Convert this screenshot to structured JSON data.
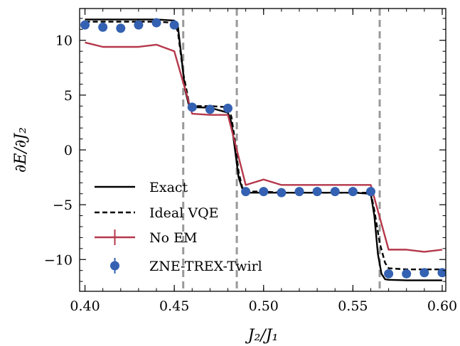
{
  "chart_data": {
    "type": "line",
    "xlabel": "J₂/J₁",
    "ylabel": "∂E/∂J₂",
    "xlim": [
      0.397,
      0.602
    ],
    "ylim": [
      -12.9,
      12.9
    ],
    "xticks": [
      0.4,
      0.45,
      0.5,
      0.55,
      0.6
    ],
    "xtick_labels": [
      "0.40",
      "0.45",
      "0.50",
      "0.55",
      "0.60"
    ],
    "yticks": [
      10,
      5,
      0,
      -5,
      -10
    ],
    "ytick_labels": [
      "10",
      "5",
      "0",
      "−5",
      "−10"
    ],
    "vlines": [
      0.455,
      0.485,
      0.565
    ],
    "legend_position": "lower left",
    "series": [
      {
        "name": "Exact",
        "style": "solid",
        "color": "#000000",
        "x": [
          0.4,
          0.41,
          0.42,
          0.43,
          0.44,
          0.45,
          0.452,
          0.454,
          0.456,
          0.458,
          0.46,
          0.47,
          0.48,
          0.482,
          0.484,
          0.486,
          0.488,
          0.49,
          0.5,
          0.51,
          0.52,
          0.53,
          0.54,
          0.55,
          0.56,
          0.562,
          0.564,
          0.566,
          0.568,
          0.57,
          0.58,
          0.59,
          0.6
        ],
        "y": [
          11.9,
          11.9,
          11.9,
          11.9,
          11.9,
          11.8,
          11.3,
          8.5,
          5.5,
          4.2,
          3.9,
          3.85,
          3.4,
          2.5,
          0.0,
          -2.5,
          -3.5,
          -3.9,
          -3.9,
          -3.9,
          -3.9,
          -3.9,
          -3.9,
          -3.9,
          -4.0,
          -6.0,
          -9.5,
          -11.3,
          -11.8,
          -11.85,
          -11.9,
          -11.9,
          -11.9
        ]
      },
      {
        "name": "Ideal VQE",
        "style": "dashed",
        "color": "#000000",
        "x": [
          0.4,
          0.41,
          0.42,
          0.43,
          0.44,
          0.45,
          0.452,
          0.455,
          0.458,
          0.46,
          0.47,
          0.48,
          0.482,
          0.484,
          0.486,
          0.488,
          0.49,
          0.5,
          0.51,
          0.52,
          0.53,
          0.54,
          0.55,
          0.56,
          0.562,
          0.565,
          0.568,
          0.57,
          0.58,
          0.59,
          0.6
        ],
        "y": [
          11.7,
          11.7,
          11.7,
          11.7,
          11.7,
          11.6,
          10.8,
          7.0,
          4.5,
          4.0,
          4.0,
          3.9,
          3.0,
          0.8,
          -2.0,
          -3.4,
          -3.8,
          -3.8,
          -3.9,
          -3.9,
          -3.9,
          -3.9,
          -3.9,
          -3.9,
          -5.5,
          -8.5,
          -10.3,
          -10.8,
          -10.9,
          -10.9,
          -10.9
        ]
      },
      {
        "name": "No EM",
        "style": "solid",
        "color": "#b5384b",
        "x": [
          0.4,
          0.41,
          0.42,
          0.43,
          0.44,
          0.45,
          0.46,
          0.47,
          0.48,
          0.49,
          0.5,
          0.51,
          0.52,
          0.53,
          0.54,
          0.55,
          0.56,
          0.57,
          0.58,
          0.59,
          0.6
        ],
        "y": [
          9.8,
          9.4,
          9.4,
          9.4,
          9.6,
          9.0,
          3.3,
          3.2,
          3.2,
          -3.2,
          -2.7,
          -3.2,
          -3.2,
          -3.2,
          -3.2,
          -3.2,
          -3.2,
          -9.1,
          -9.1,
          -9.3,
          -9.1
        ]
      },
      {
        "name": "ZNE-TREX-Twirl",
        "style": "markers",
        "color": "#3461b2",
        "x": [
          0.4,
          0.41,
          0.42,
          0.43,
          0.44,
          0.45,
          0.46,
          0.47,
          0.48,
          0.49,
          0.5,
          0.51,
          0.52,
          0.53,
          0.54,
          0.55,
          0.56,
          0.57,
          0.58,
          0.59,
          0.6
        ],
        "y": [
          11.4,
          11.2,
          11.1,
          11.4,
          11.6,
          11.4,
          3.9,
          3.7,
          3.8,
          -3.8,
          -3.8,
          -3.9,
          -3.8,
          -3.8,
          -3.8,
          -3.8,
          -3.8,
          -11.3,
          -11.3,
          -11.2,
          -11.2
        ]
      }
    ]
  }
}
